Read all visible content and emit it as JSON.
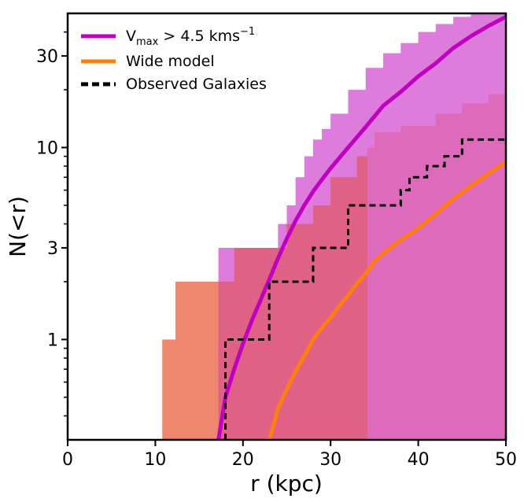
{
  "chart_data": {
    "type": "line",
    "xlabel": "r (kpc)",
    "ylabel": "N(<r)",
    "xlim": [
      0,
      50
    ],
    "ylim": [
      0.3,
      50
    ],
    "yscale": "log",
    "xticks": [
      0,
      10,
      20,
      30,
      40,
      50
    ],
    "yticks": [
      1,
      3,
      10,
      30
    ],
    "grid": false,
    "legend_position": "top-left",
    "legend": [
      {
        "label_main": "V",
        "label_sub": "max",
        "label_rest": " > 4.5 kms",
        "label_sup": "−1",
        "color": "#c000c0",
        "style": "solid"
      },
      {
        "label_main": "Wide model",
        "color": "#ff7f0e",
        "style": "solid"
      },
      {
        "label_main": "Observed Galaxies",
        "color": "#000000",
        "style": "dashed"
      }
    ],
    "series": [
      {
        "name": "V_max > 4.5 kms^-1",
        "color": "#c000c0",
        "x": [
          17.2,
          18,
          19,
          20,
          21,
          22,
          23,
          24,
          25,
          26,
          27,
          28,
          29,
          30,
          32,
          34,
          36,
          38,
          40,
          42,
          44,
          46,
          48,
          50
        ],
        "y": [
          0.3,
          0.5,
          0.7,
          0.95,
          1.25,
          1.6,
          2.05,
          2.65,
          3.35,
          4.15,
          5.0,
          5.9,
          6.8,
          7.8,
          10.0,
          12.8,
          16.5,
          19.5,
          23.5,
          27.5,
          33,
          38,
          43,
          48
        ],
        "band_x": [
          17.2,
          18,
          19,
          20,
          21,
          22,
          23,
          24,
          25,
          26,
          27,
          28,
          29,
          30,
          32,
          34,
          36,
          38,
          40,
          42,
          44,
          46,
          48,
          50
        ],
        "band_low": [
          0.3,
          0.3,
          0.3,
          0.3,
          0.3,
          0.3,
          0.3,
          0.3,
          0.3,
          0.3,
          0.3,
          0.3,
          0.3,
          0.3,
          0.3,
          0.3,
          0.3,
          0.3,
          0.3,
          0.3,
          0.3,
          0.3,
          0.3,
          0.3
        ],
        "band_high": [
          3.0,
          3.0,
          3.0,
          3.0,
          3.0,
          3.0,
          3.0,
          4.0,
          5.0,
          7.0,
          9.0,
          11.0,
          12.5,
          15.0,
          20.0,
          26.0,
          31.0,
          35.0,
          40.0,
          44.0,
          48.0,
          50.0,
          50.0,
          50.0
        ]
      },
      {
        "name": "Wide model",
        "color": "#ff7f0e",
        "x": [
          23.0,
          23.5,
          24,
          25,
          26,
          27,
          28,
          29,
          30,
          31,
          32,
          33,
          34,
          35,
          36,
          38,
          40,
          42,
          44,
          46,
          48,
          50
        ],
        "y": [
          0.3,
          0.36,
          0.44,
          0.55,
          0.68,
          0.82,
          1.0,
          1.15,
          1.3,
          1.5,
          1.7,
          1.95,
          2.2,
          2.55,
          2.8,
          3.3,
          3.8,
          4.5,
          5.4,
          6.3,
          7.3,
          8.4
        ],
        "band_x": [
          10.8,
          12.3,
          19,
          22,
          25,
          28,
          30,
          33,
          34.2,
          35,
          38,
          42,
          45,
          48,
          50
        ],
        "band_low": [
          0.3,
          0.3,
          0.3,
          0.3,
          0.3,
          0.3,
          0.3,
          0.3,
          0.3,
          0.3,
          0.3,
          0.3,
          0.3,
          0.3,
          0.3
        ],
        "band_high": [
          1.0,
          2.0,
          3.0,
          3.0,
          4.0,
          5.0,
          7.0,
          9.0,
          10.0,
          12.0,
          13.0,
          15.0,
          17.0,
          19.0,
          21.0
        ]
      },
      {
        "name": "Observed Galaxies",
        "color": "#000000",
        "step_x": [
          18,
          23,
          28,
          32,
          38,
          39,
          41,
          43,
          45,
          50
        ],
        "step_y": [
          1,
          2,
          3,
          5,
          6,
          7,
          8,
          9,
          11,
          11
        ]
      }
    ]
  }
}
